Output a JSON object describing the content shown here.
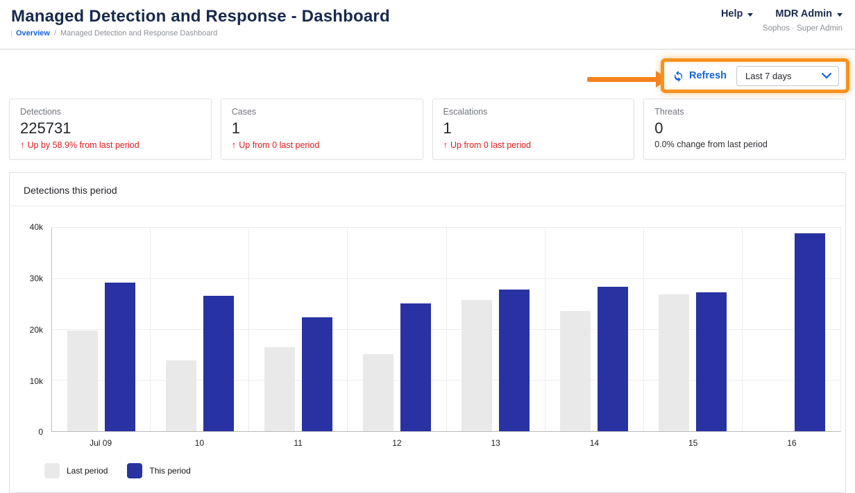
{
  "header": {
    "title": "Managed Detection and Response - Dashboard",
    "breadcrumb": {
      "link": "Overview",
      "separator": "/",
      "current": "Managed Detection and Response Dashboard"
    },
    "help_label": "Help",
    "account_label": "MDR Admin",
    "subaccount": "Sophos · Super Admin"
  },
  "toolbar": {
    "refresh_label": "Refresh",
    "range_selected": "Last 7 days"
  },
  "icons": {
    "up_arrow": "↑",
    "refresh": "circular-arrows",
    "chevron_down": "chevron-down",
    "caret_down": "caret-down"
  },
  "stats": [
    {
      "label": "Detections",
      "value": "225731",
      "delta": "Up by 58.9% from last period",
      "delta_style": "red",
      "has_arrow": true
    },
    {
      "label": "Cases",
      "value": "1",
      "delta": "Up from 0 last period",
      "delta_style": "red",
      "has_arrow": true
    },
    {
      "label": "Escalations",
      "value": "1",
      "delta": "Up from 0 last period",
      "delta_style": "red",
      "has_arrow": true
    },
    {
      "label": "Threats",
      "value": "0",
      "delta": "0.0% change from last period",
      "delta_style": "neutral",
      "has_arrow": false
    }
  ],
  "chart_card": {
    "title": "Detections this period"
  },
  "chart_data": {
    "type": "bar",
    "title": "Detections this period",
    "categories": [
      "Jul 09",
      "10",
      "11",
      "12",
      "13",
      "14",
      "15",
      "16"
    ],
    "series": [
      {
        "name": "Last period",
        "color": "#e9e9e9",
        "values": [
          19900,
          13900,
          16500,
          15200,
          25900,
          23600,
          27000,
          0
        ]
      },
      {
        "name": "This period",
        "color": "#2832a2",
        "values": [
          29200,
          26600,
          22400,
          25200,
          27900,
          28400,
          27300,
          38900
        ]
      }
    ],
    "xlabel": "",
    "ylabel": "",
    "ylim": [
      0,
      40000
    ],
    "yticks": [
      "0",
      "10k",
      "20k",
      "30k",
      "40k"
    ],
    "grid": true,
    "legend_position": "bottom-left"
  },
  "colors": {
    "accent_orange": "#f6891f",
    "link_blue": "#1465d8",
    "delta_red": "#e31b1f",
    "title_navy": "#18294d",
    "bar_last_period": "#e9e9e9",
    "bar_this_period": "#2832a2"
  }
}
